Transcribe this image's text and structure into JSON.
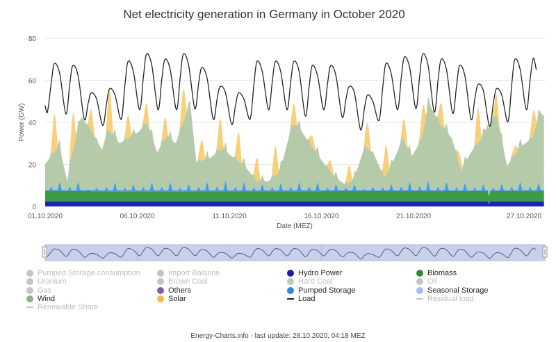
{
  "chart_data": {
    "type": "area",
    "title": "Net electricity generation in Germany in October 2020",
    "xlabel": "Date (MEZ)",
    "ylabel": "Power (GW)",
    "ylim": [
      0,
      80
    ],
    "yticks": [
      0,
      20,
      40,
      60,
      80
    ],
    "xticks": [
      {
        "date": "01.10 00:00",
        "label": "01.10.2020"
      },
      {
        "date": "06.10 00:00",
        "label": "06.10.2020"
      },
      {
        "date": "11.10 00:00",
        "label": "11.10.2020"
      },
      {
        "date": "16.10 00:00",
        "label": "16.10.2020"
      },
      {
        "date": "21.10 00:00",
        "label": "21.10.2020"
      },
      {
        "date": "27.10 00:00",
        "label": "27.10.2020"
      }
    ],
    "xrange": [
      "01.10 00:00",
      "28.10 02:00"
    ],
    "grid": "horizontal",
    "stacked": true,
    "series": {
      "hydro": {
        "name": "Hydro Power",
        "color": "#1e22b8",
        "points": [
          [
            "01.10 00:00",
            2.3
          ],
          [
            "25.10 01:00",
            2.3
          ],
          [
            "25.10 02:00",
            1.0
          ],
          [
            "25.10 04:00",
            2.3
          ],
          [
            "28.10 02:00",
            2.3
          ]
        ]
      },
      "biomass": {
        "name": "Biomass",
        "color": "#3e9a48",
        "points": [
          [
            "01.10 00:00",
            5.1
          ],
          [
            "04.10 12:00",
            4.9
          ],
          [
            "25.10 01:00",
            5.0
          ],
          [
            "25.10 02:00",
            3.5
          ],
          [
            "25.10 04:00",
            5.0
          ],
          [
            "28.10 02:00",
            5.1
          ]
        ]
      },
      "pumped_storage": {
        "name": "Pumped Storage",
        "color": "#3d9de6",
        "base": 0.4,
        "evening_peaks": [
          [
            "01.10 19:00",
            4
          ],
          [
            "02.10 19:00",
            4
          ],
          [
            "03.10 19:00",
            1
          ],
          [
            "04.10 19:00",
            4
          ],
          [
            "05.10 19:00",
            3
          ],
          [
            "06.10 19:00",
            4
          ],
          [
            "07.10 19:00",
            4
          ],
          [
            "08.10 19:00",
            3
          ],
          [
            "09.10 19:00",
            4
          ],
          [
            "10.10 19:00",
            4.5
          ],
          [
            "11.10 19:00",
            4
          ],
          [
            "12.10 19:00",
            3
          ],
          [
            "13.10 19:00",
            3.5
          ],
          [
            "14.10 19:00",
            4
          ],
          [
            "15.10 19:00",
            4
          ],
          [
            "16.10 19:00",
            3
          ],
          [
            "17.10 19:00",
            3
          ],
          [
            "18.10 19:00",
            1.5
          ],
          [
            "19.10 19:00",
            3
          ],
          [
            "20.10 19:00",
            4
          ],
          [
            "21.10 19:00",
            4.5
          ],
          [
            "22.10 19:00",
            4
          ],
          [
            "23.10 19:00",
            3.5
          ],
          [
            "24.10 19:00",
            3
          ],
          [
            "25.10 19:00",
            3
          ],
          [
            "26.10 19:00",
            4
          ],
          [
            "27.10 19:00",
            3.5
          ]
        ]
      },
      "wind": {
        "name": "Wind",
        "color": "#b4caa9",
        "points": [
          [
            "01.10 00:00",
            12.4
          ],
          [
            "01.10 18:00",
            21.1
          ],
          [
            "02.10 05:00",
            4.1
          ],
          [
            "02.10 08:00",
            12.4
          ],
          [
            "02.10 23:00",
            35.0
          ],
          [
            "03.10 11:00",
            29.1
          ],
          [
            "04.10 02:00",
            19.2
          ],
          [
            "04.10 10:00",
            29.1
          ],
          [
            "05.10 01:00",
            22.4
          ],
          [
            "06.10 02:00",
            27.9
          ],
          [
            "06.10 12:00",
            32.4
          ],
          [
            "07.10 02:00",
            18.1
          ],
          [
            "07.10 14:00",
            25.8
          ],
          [
            "08.10 02:00",
            22.4
          ],
          [
            "08.10 21:00",
            41.2
          ],
          [
            "09.10 05:00",
            13.4
          ],
          [
            "09.10 23:00",
            15.4
          ],
          [
            "10.10 14:00",
            19.9
          ],
          [
            "11.10 06:00",
            15.4
          ],
          [
            "11.10 21:00",
            11.1
          ],
          [
            "12.10 12:00",
            4.4
          ],
          [
            "13.10 03:00",
            4.4
          ],
          [
            "13.10 18:00",
            8.9
          ],
          [
            "14.10 09:00",
            30.2
          ],
          [
            "14.10 13:00",
            31.4
          ],
          [
            "14.10 20:00",
            29.1
          ],
          [
            "15.10 21:00",
            15.9
          ],
          [
            "16.10 15:00",
            7.1
          ],
          [
            "17.10 07:00",
            2.7
          ],
          [
            "17.10 18:00",
            4.9
          ],
          [
            "18.10 09:00",
            21.4
          ],
          [
            "18.10 22:00",
            15.9
          ],
          [
            "19.10 10:00",
            6.0
          ],
          [
            "19.10 19:00",
            11.4
          ],
          [
            "20.10 10:00",
            24.7
          ],
          [
            "20.10 21:00",
            15.9
          ],
          [
            "21.10 10:00",
            23.4
          ],
          [
            "21.10 20:00",
            41.2
          ],
          [
            "22.10 11:00",
            31.4
          ],
          [
            "23.10 02:00",
            24.7
          ],
          [
            "23.10 14:00",
            9.2
          ],
          [
            "24.10 03:00",
            18.1
          ],
          [
            "24.10 17:00",
            24.7
          ],
          [
            "25.10 01:00",
            31.4
          ],
          [
            "25.10 12:00",
            35.9
          ],
          [
            "26.10 02:00",
            11.4
          ],
          [
            "26.10 18:00",
            20.2
          ],
          [
            "27.10 11:00",
            24.7
          ],
          [
            "27.10 21:00",
            36.8
          ],
          [
            "28.10 02:00",
            35.2
          ]
        ]
      },
      "solar": {
        "name": "Solar",
        "color": "#f7d07a",
        "noon_peaks": [
          [
            "01.10 12:00",
            18
          ],
          [
            "02.10 12:00",
            18
          ],
          [
            "03.10 12:00",
            10
          ],
          [
            "04.10 12:00",
            20
          ],
          [
            "05.10 12:00",
            11
          ],
          [
            "06.10 12:00",
            9.5
          ],
          [
            "07.10 12:00",
            10
          ],
          [
            "08.10 12:00",
            16
          ],
          [
            "09.10 12:00",
            10
          ],
          [
            "10.10 12:00",
            15
          ],
          [
            "11.10 12:00",
            14
          ],
          [
            "12.10 12:00",
            11
          ],
          [
            "13.10 12:00",
            14
          ],
          [
            "14.10 12:00",
            10
          ],
          [
            "15.10 12:00",
            5.5
          ],
          [
            "16.10 12:00",
            5.6
          ],
          [
            "17.10 12:00",
            8
          ],
          [
            "18.10 12:00",
            12
          ],
          [
            "19.10 12:00",
            14.4
          ],
          [
            "20.10 12:00",
            10.7
          ],
          [
            "21.10 12:00",
            13
          ],
          [
            "22.10 12:00",
            10.7
          ],
          [
            "23.10 12:00",
            5.7
          ],
          [
            "24.10 12:00",
            17
          ],
          [
            "25.10 12:00",
            10
          ],
          [
            "26.10 12:00",
            4
          ],
          [
            "27.10 12:00",
            12
          ]
        ]
      },
      "load": {
        "name": "Load",
        "color": "#222222",
        "points": [
          [
            "01.10 00:00",
            48
          ],
          [
            "01.10 03:00",
            45
          ],
          [
            "01.10 08:00",
            59
          ],
          [
            "01.10 12:00",
            68
          ],
          [
            "01.10 19:00",
            63
          ],
          [
            "02.10 03:00",
            44
          ],
          [
            "02.10 08:00",
            58
          ],
          [
            "02.10 12:00",
            67
          ],
          [
            "02.10 19:00",
            62
          ],
          [
            "03.10 03:00",
            41.5
          ],
          [
            "03.10 08:00",
            49
          ],
          [
            "03.10 12:00",
            54
          ],
          [
            "03.10 19:00",
            51
          ],
          [
            "04.10 03:00",
            38.5
          ],
          [
            "04.10 08:00",
            49
          ],
          [
            "04.10 12:00",
            56
          ],
          [
            "04.10 19:00",
            53
          ],
          [
            "05.10 03:00",
            41.5
          ],
          [
            "05.10 08:00",
            58
          ],
          [
            "05.10 12:00",
            69
          ],
          [
            "05.10 19:00",
            64
          ],
          [
            "06.10 03:00",
            46
          ],
          [
            "06.10 08:00",
            61.5
          ],
          [
            "06.10 12:00",
            72.5
          ],
          [
            "06.10 19:00",
            67
          ],
          [
            "07.10 03:00",
            46
          ],
          [
            "07.10 08:00",
            60.5
          ],
          [
            "07.10 12:00",
            70
          ],
          [
            "07.10 19:00",
            65
          ],
          [
            "08.10 03:00",
            46
          ],
          [
            "08.10 08:00",
            61.5
          ],
          [
            "08.10 12:00",
            72.5
          ],
          [
            "08.10 19:00",
            67
          ],
          [
            "09.10 03:00",
            46.5
          ],
          [
            "09.10 08:00",
            58.5
          ],
          [
            "09.10 12:00",
            66
          ],
          [
            "09.10 19:00",
            61
          ],
          [
            "10.10 03:00",
            41.5
          ],
          [
            "10.10 08:00",
            51
          ],
          [
            "10.10 12:00",
            57
          ],
          [
            "10.10 19:00",
            54
          ],
          [
            "11.10 03:00",
            39
          ],
          [
            "11.10 08:00",
            48
          ],
          [
            "11.10 12:00",
            54
          ],
          [
            "11.10 19:00",
            51
          ],
          [
            "12.10 03:00",
            41.5
          ],
          [
            "12.10 08:00",
            58
          ],
          [
            "12.10 12:00",
            69
          ],
          [
            "12.10 19:00",
            64
          ],
          [
            "13.10 03:00",
            46
          ],
          [
            "13.10 08:00",
            59.5
          ],
          [
            "13.10 12:00",
            69
          ],
          [
            "13.10 19:00",
            64
          ],
          [
            "14.10 03:00",
            46
          ],
          [
            "14.10 08:00",
            59.5
          ],
          [
            "14.10 12:00",
            69
          ],
          [
            "14.10 19:00",
            64
          ],
          [
            "15.10 03:00",
            43
          ],
          [
            "15.10 08:00",
            57
          ],
          [
            "15.10 12:00",
            67
          ],
          [
            "15.10 19:00",
            62
          ],
          [
            "16.10 03:00",
            46
          ],
          [
            "16.10 08:00",
            58.5
          ],
          [
            "16.10 12:00",
            67
          ],
          [
            "16.10 19:00",
            62
          ],
          [
            "17.10 03:00",
            42.5
          ],
          [
            "17.10 08:00",
            51
          ],
          [
            "17.10 12:00",
            57
          ],
          [
            "17.10 19:00",
            54
          ],
          [
            "18.10 03:00",
            36.5
          ],
          [
            "18.10 08:00",
            46.5
          ],
          [
            "18.10 12:00",
            53
          ],
          [
            "18.10 19:00",
            50
          ],
          [
            "19.10 03:00",
            40.9
          ],
          [
            "19.10 08:00",
            57
          ],
          [
            "19.10 12:00",
            68
          ],
          [
            "19.10 19:00",
            63
          ],
          [
            "20.10 03:00",
            46
          ],
          [
            "20.10 08:00",
            61
          ],
          [
            "20.10 12:00",
            71
          ],
          [
            "20.10 19:00",
            66
          ],
          [
            "21.10 03:00",
            46.6
          ],
          [
            "21.10 08:00",
            62
          ],
          [
            "21.10 12:00",
            72.5
          ],
          [
            "21.10 19:00",
            67
          ],
          [
            "22.10 03:00",
            44.9
          ],
          [
            "22.10 08:00",
            60
          ],
          [
            "22.10 12:00",
            70
          ],
          [
            "22.10 19:00",
            65
          ],
          [
            "23.10 03:00",
            44.3
          ],
          [
            "23.10 08:00",
            57
          ],
          [
            "23.10 12:00",
            67
          ],
          [
            "23.10 19:00",
            62
          ],
          [
            "24.10 03:00",
            41.4
          ],
          [
            "24.10 08:00",
            51.5
          ],
          [
            "24.10 12:00",
            58
          ],
          [
            "24.10 19:00",
            55
          ],
          [
            "25.10 03:00",
            38.1
          ],
          [
            "25.10 08:00",
            49
          ],
          [
            "25.10 12:00",
            56
          ],
          [
            "25.10 19:00",
            53
          ],
          [
            "26.10 03:00",
            40.3
          ],
          [
            "26.10 08:00",
            58
          ],
          [
            "26.10 12:00",
            70
          ],
          [
            "26.10 19:00",
            65
          ],
          [
            "27.10 03:00",
            46
          ],
          [
            "27.10 08:00",
            60.5
          ],
          [
            "27.10 12:00",
            70.5
          ],
          [
            "27.10 16:00",
            65
          ]
        ]
      }
    }
  },
  "legend": [
    {
      "label": "Pumped Storage consumption",
      "active": false,
      "marker": "dot",
      "color": "#c4c4c4"
    },
    {
      "label": "Import Balance",
      "active": false,
      "marker": "dot",
      "color": "#c4c4c4"
    },
    {
      "label": "Hydro Power",
      "active": true,
      "marker": "dot",
      "color": "#1a1aa6"
    },
    {
      "label": "Biomass",
      "active": true,
      "marker": "dot",
      "color": "#2e8b2e"
    },
    {
      "label": "Uranium",
      "active": false,
      "marker": "dot",
      "color": "#c4c4c4"
    },
    {
      "label": "Brown Coal",
      "active": false,
      "marker": "dot",
      "color": "#c4c4c4"
    },
    {
      "label": "Hard Coal",
      "active": false,
      "marker": "dot",
      "color": "#c4c4c4"
    },
    {
      "label": "Oil",
      "active": false,
      "marker": "dot",
      "color": "#c4c4c4"
    },
    {
      "label": "Gas",
      "active": false,
      "marker": "dot",
      "color": "#c4c4c4"
    },
    {
      "label": "Others",
      "active": true,
      "marker": "dot",
      "color": "#7e5fa6"
    },
    {
      "label": "Pumped Storage",
      "active": true,
      "marker": "dot",
      "color": "#2e86de"
    },
    {
      "label": "Seasonal Storage",
      "active": true,
      "marker": "dot",
      "color": "#a6bdf5"
    },
    {
      "label": "Wind",
      "active": true,
      "marker": "dot",
      "color": "#8fb282"
    },
    {
      "label": "Solar",
      "active": true,
      "marker": "dot",
      "color": "#f5bd45"
    },
    {
      "label": "Load",
      "active": true,
      "marker": "line",
      "color": "#222222"
    },
    {
      "label": "Residual load",
      "active": false,
      "marker": "line",
      "color": "#c4c4c4"
    },
    {
      "label": "Renewable Share",
      "active": false,
      "marker": "line",
      "color": "#c4c4c4"
    }
  ],
  "footer": "Energy-Charts.info - last update: 28.10.2020, 04:18 MEZ"
}
